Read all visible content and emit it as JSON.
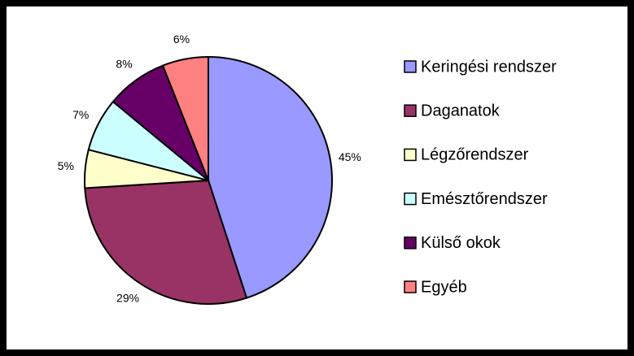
{
  "chart_data": {
    "type": "pie",
    "categories": [
      "Keringési rendszer",
      "Daganatok",
      "Légzőrendszer",
      "Emésztőrendszer",
      "Külső okok",
      "Egyéb"
    ],
    "values": [
      45,
      29,
      5,
      7,
      8,
      6
    ],
    "value_labels": [
      "45%",
      "29%",
      "5%",
      "7%",
      "8%",
      "6%"
    ],
    "colors": [
      "#9999ff",
      "#993366",
      "#ffffcc",
      "#ccffff",
      "#660066",
      "#ff8080"
    ],
    "legend": "right"
  }
}
